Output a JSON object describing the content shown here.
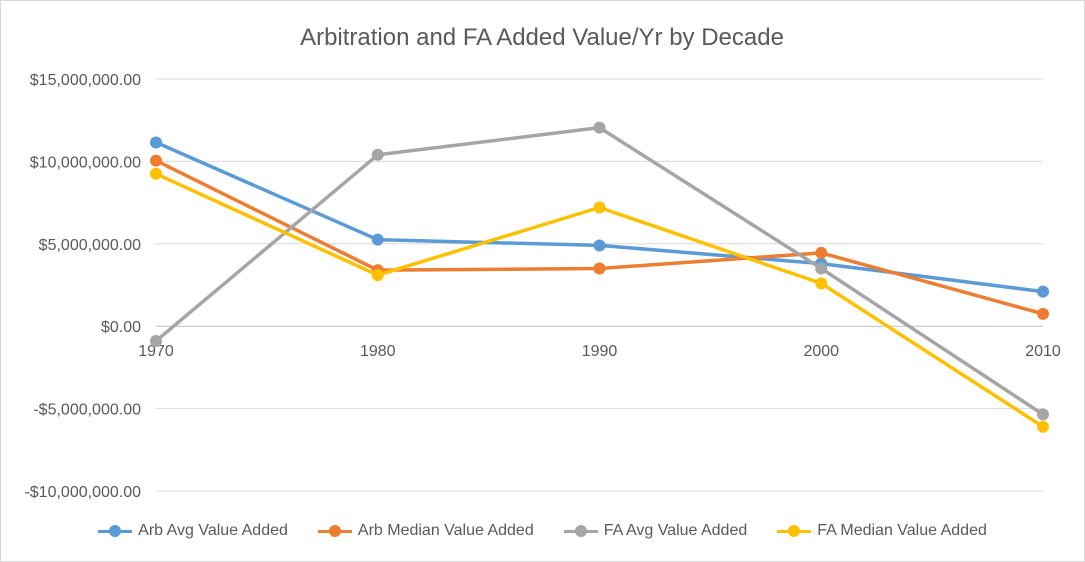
{
  "chart_data": {
    "type": "line",
    "title": "Arbitration and FA Added Value/Yr by Decade",
    "xlabel": "",
    "ylabel": "",
    "categories": [
      "1970",
      "1980",
      "1990",
      "2000",
      "2010"
    ],
    "ylim": [
      -10000000,
      15000000
    ],
    "y_ticks": [
      15000000,
      10000000,
      5000000,
      0,
      -5000000,
      -10000000
    ],
    "y_tick_labels": [
      "$15,000,000.00",
      "$10,000,000.00",
      "$5,000,000.00",
      "$0.00",
      "-$5,000,000.00",
      "-$10,000,000.00"
    ],
    "grid": true,
    "legend_position": "bottom",
    "series": [
      {
        "name": "Arb Avg Value Added",
        "color": "#5b9bd5",
        "values": [
          11150000,
          5250000,
          4900000,
          3800000,
          2100000
        ]
      },
      {
        "name": "Arb Median Value Added",
        "color": "#ed7d31",
        "values": [
          10050000,
          3400000,
          3500000,
          4450000,
          750000
        ]
      },
      {
        "name": "FA Avg Value Added",
        "color": "#a5a5a5",
        "values": [
          -900000,
          10400000,
          12050000,
          3500000,
          -5350000
        ]
      },
      {
        "name": "FA Median Value Added",
        "color": "#ffc000",
        "values": [
          9250000,
          3100000,
          7200000,
          2600000,
          -6100000
        ]
      }
    ]
  }
}
